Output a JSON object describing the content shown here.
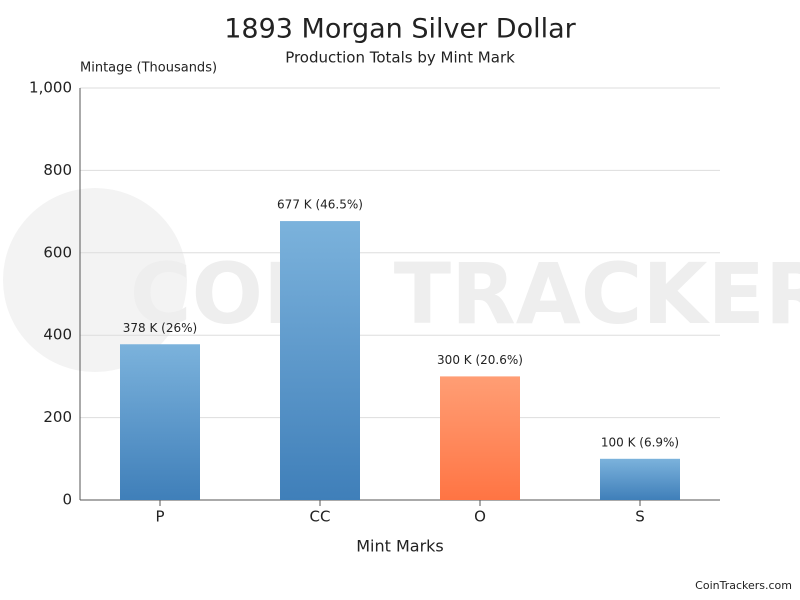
{
  "chart_data": {
    "type": "bar",
    "title": "1893 Morgan Silver Dollar",
    "subtitle": "Production Totals by Mint Mark",
    "y_axis_label": "Mintage (Thousands)",
    "x_axis_label": "Mint Marks",
    "categories": [
      "P",
      "CC",
      "O",
      "S"
    ],
    "values": [
      378,
      677,
      300,
      100
    ],
    "value_labels": [
      "378 K (26%)",
      "677 K (46.5%)",
      "300 K (20.6%)",
      "100 K (6.9%)"
    ],
    "colors": [
      "#3f7fb9",
      "#3f7fb9",
      "#ff7443",
      "#3f7fb9"
    ],
    "ylim": [
      0,
      1000
    ],
    "yticks": [
      0,
      200,
      400,
      600,
      800,
      {
        "value": 1000,
        "label": "1,000"
      }
    ],
    "grid": true,
    "watermark": "COIN TRACKERS",
    "footer": "CoinTrackers.com"
  }
}
